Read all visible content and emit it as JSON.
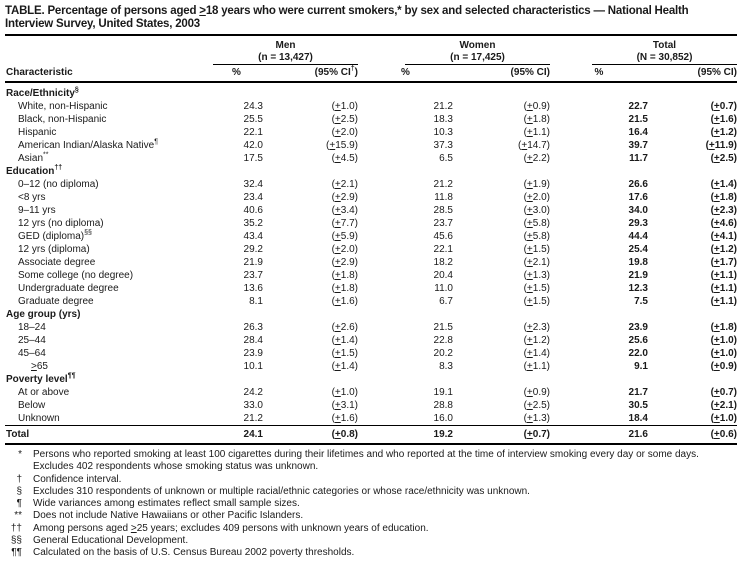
{
  "colors": {
    "text": "#1a1a1a",
    "rule": "#000000",
    "background": "#ffffff"
  },
  "title": {
    "line1": "TABLE. Percentage of persons aged ≥18 years who were current smokers,* by sex and selected characteristics — National Health",
    "line2": "Interview Survey, United States, 2003"
  },
  "header": {
    "characteristic": "Characteristic",
    "groups": [
      {
        "title": "Men",
        "n": "(n = 13,427)",
        "pct": "%",
        "ci": "(95% CI†)"
      },
      {
        "title": "Women",
        "n": "(n = 17,425)",
        "pct": "%",
        "ci": "(95% CI)"
      },
      {
        "title": "Total",
        "n": "(N = 30,852)",
        "pct": "%",
        "ci": "(95% CI)"
      }
    ]
  },
  "rows": [
    {
      "type": "section",
      "label": "Race/Ethnicity",
      "sup": "§"
    },
    {
      "type": "data",
      "indent": 1,
      "label": "White, non-Hispanic",
      "sup": "",
      "men_pct": "24.3",
      "men_ci": "(±1.0)",
      "women_pct": "21.2",
      "women_ci": "(±0.9)",
      "total_pct": "22.7",
      "total_ci": "(±0.7)"
    },
    {
      "type": "data",
      "indent": 1,
      "label": "Black, non-Hispanic",
      "sup": "",
      "men_pct": "25.5",
      "men_ci": "(±2.5)",
      "women_pct": "18.3",
      "women_ci": "(±1.8)",
      "total_pct": "21.5",
      "total_ci": "(±1.6)"
    },
    {
      "type": "data",
      "indent": 1,
      "label": "Hispanic",
      "sup": "",
      "men_pct": "22.1",
      "men_ci": "(±2.0)",
      "women_pct": "10.3",
      "women_ci": "(±1.1)",
      "total_pct": "16.4",
      "total_ci": "(±1.2)"
    },
    {
      "type": "data",
      "indent": 1,
      "label": "American Indian/Alaska Native",
      "sup": "¶",
      "men_pct": "42.0",
      "men_ci": "(±15.9)",
      "women_pct": "37.3",
      "women_ci": "(±14.7)",
      "total_pct": "39.7",
      "total_ci": "(±11.9)"
    },
    {
      "type": "data",
      "indent": 1,
      "label": "Asian",
      "sup": "**",
      "men_pct": "17.5",
      "men_ci": "(±4.5)",
      "women_pct": "6.5",
      "women_ci": "(±2.2)",
      "total_pct": "11.7",
      "total_ci": "(±2.5)"
    },
    {
      "type": "section",
      "label": "Education",
      "sup": "††"
    },
    {
      "type": "data",
      "indent": 1,
      "label": "0–12 (no diploma)",
      "sup": "",
      "men_pct": "32.4",
      "men_ci": "(±2.1)",
      "women_pct": "21.2",
      "women_ci": "(±1.9)",
      "total_pct": "26.6",
      "total_ci": "(±1.4)"
    },
    {
      "type": "data",
      "indent": 1,
      "label": "<8 yrs",
      "sup": "",
      "men_pct": "23.4",
      "men_ci": "(±2.9)",
      "women_pct": "11.8",
      "women_ci": "(±2.0)",
      "total_pct": "17.6",
      "total_ci": "(±1.8)"
    },
    {
      "type": "data",
      "indent": 1,
      "label": "9–11 yrs",
      "sup": "",
      "men_pct": "40.6",
      "men_ci": "(±3.4)",
      "women_pct": "28.5",
      "women_ci": "(±3.0)",
      "total_pct": "34.0",
      "total_ci": "(±2.3)"
    },
    {
      "type": "data",
      "indent": 1,
      "label": "12 yrs (no diploma)",
      "sup": "",
      "men_pct": "35.2",
      "men_ci": "(±7.7)",
      "women_pct": "23.7",
      "women_ci": "(±5.8)",
      "total_pct": "29.3",
      "total_ci": "(±4.6)"
    },
    {
      "type": "data",
      "indent": 1,
      "label": "GED (diploma)",
      "sup": "§§",
      "men_pct": "43.4",
      "men_ci": "(±5.9)",
      "women_pct": "45.6",
      "women_ci": "(±5.8)",
      "total_pct": "44.4",
      "total_ci": "(±4.1)"
    },
    {
      "type": "data",
      "indent": 1,
      "label": "12 yrs (diploma)",
      "sup": "",
      "men_pct": "29.2",
      "men_ci": "(±2.0)",
      "women_pct": "22.1",
      "women_ci": "(±1.5)",
      "total_pct": "25.4",
      "total_ci": "(±1.2)"
    },
    {
      "type": "data",
      "indent": 1,
      "label": "Associate degree",
      "sup": "",
      "men_pct": "21.9",
      "men_ci": "(±2.9)",
      "women_pct": "18.2",
      "women_ci": "(±2.1)",
      "total_pct": "19.8",
      "total_ci": "(±1.7)"
    },
    {
      "type": "data",
      "indent": 1,
      "label": "Some college (no degree)",
      "sup": "",
      "men_pct": "23.7",
      "men_ci": "(±1.8)",
      "women_pct": "20.4",
      "women_ci": "(±1.3)",
      "total_pct": "21.9",
      "total_ci": "(±1.1)"
    },
    {
      "type": "data",
      "indent": 1,
      "label": "Undergraduate degree",
      "sup": "",
      "men_pct": "13.6",
      "men_ci": "(±1.8)",
      "women_pct": "11.0",
      "women_ci": "(±1.5)",
      "total_pct": "12.3",
      "total_ci": "(±1.1)"
    },
    {
      "type": "data",
      "indent": 1,
      "label": "Graduate degree",
      "sup": "",
      "men_pct": "8.1",
      "men_ci": "(±1.6)",
      "women_pct": "6.7",
      "women_ci": "(±1.5)",
      "total_pct": "7.5",
      "total_ci": "(±1.1)"
    },
    {
      "type": "section",
      "label": "Age group (yrs)",
      "sup": ""
    },
    {
      "type": "data",
      "indent": 1,
      "label": "18–24",
      "sup": "",
      "men_pct": "26.3",
      "men_ci": "(±2.6)",
      "women_pct": "21.5",
      "women_ci": "(±2.3)",
      "total_pct": "23.9",
      "total_ci": "(±1.8)"
    },
    {
      "type": "data",
      "indent": 1,
      "label": "25–44",
      "sup": "",
      "men_pct": "28.4",
      "men_ci": "(±1.4)",
      "women_pct": "22.8",
      "women_ci": "(±1.2)",
      "total_pct": "25.6",
      "total_ci": "(±1.0)"
    },
    {
      "type": "data",
      "indent": 1,
      "label": "45–64",
      "sup": "",
      "men_pct": "23.9",
      "men_ci": "(±1.5)",
      "women_pct": "20.2",
      "women_ci": "(±1.4)",
      "total_pct": "22.0",
      "total_ci": "(±1.0)"
    },
    {
      "type": "data",
      "indent": 2,
      "label": "≥65",
      "sup": "",
      "men_pct": "10.1",
      "men_ci": "(±1.4)",
      "women_pct": "8.3",
      "women_ci": "(±1.1)",
      "total_pct": "9.1",
      "total_ci": "(±0.9)"
    },
    {
      "type": "section",
      "label": "Poverty level",
      "sup": "¶¶"
    },
    {
      "type": "data",
      "indent": 1,
      "label": "At or above",
      "sup": "",
      "men_pct": "24.2",
      "men_ci": "(±1.0)",
      "women_pct": "19.1",
      "women_ci": "(±0.9)",
      "total_pct": "21.7",
      "total_ci": "(±0.7)"
    },
    {
      "type": "data",
      "indent": 1,
      "label": "Below",
      "sup": "",
      "men_pct": "33.0",
      "men_ci": "(±3.1)",
      "women_pct": "28.8",
      "women_ci": "(±2.5)",
      "total_pct": "30.5",
      "total_ci": "(±2.1)"
    },
    {
      "type": "data",
      "indent": 1,
      "label": "Unknown",
      "sup": "",
      "men_pct": "21.2",
      "men_ci": "(±1.6)",
      "women_pct": "16.0",
      "women_ci": "(±1.3)",
      "total_pct": "18.4",
      "total_ci": "(±1.0)"
    }
  ],
  "total_row": {
    "label": "Total",
    "men_pct": "24.1",
    "men_ci": "(±0.8)",
    "women_pct": "19.2",
    "women_ci": "(±0.7)",
    "total_pct": "21.6",
    "total_ci": "(±0.6)"
  },
  "footnotes": [
    {
      "sym": "*",
      "text": "Persons who reported smoking at least 100 cigarettes during their lifetimes and who reported at the time of interview smoking every day or some days. Excludes 402 respondents whose smoking status was unknown."
    },
    {
      "sym": "†",
      "text": "Confidence interval."
    },
    {
      "sym": "§",
      "text": "Excludes 310 respondents of unknown or multiple racial/ethnic categories or whose race/ethnicity was unknown."
    },
    {
      "sym": "¶",
      "text": "Wide variances among estimates reflect small sample sizes."
    },
    {
      "sym": "**",
      "text": "Does not include Native Hawaiians or other Pacific Islanders."
    },
    {
      "sym": "††",
      "text": "Among persons aged ≥25 years; excludes 409 persons with unknown years of education."
    },
    {
      "sym": "§§",
      "text": "General Educational Development."
    },
    {
      "sym": "¶¶",
      "text": "Calculated on the basis of U.S. Census Bureau 2002 poverty thresholds."
    }
  ]
}
